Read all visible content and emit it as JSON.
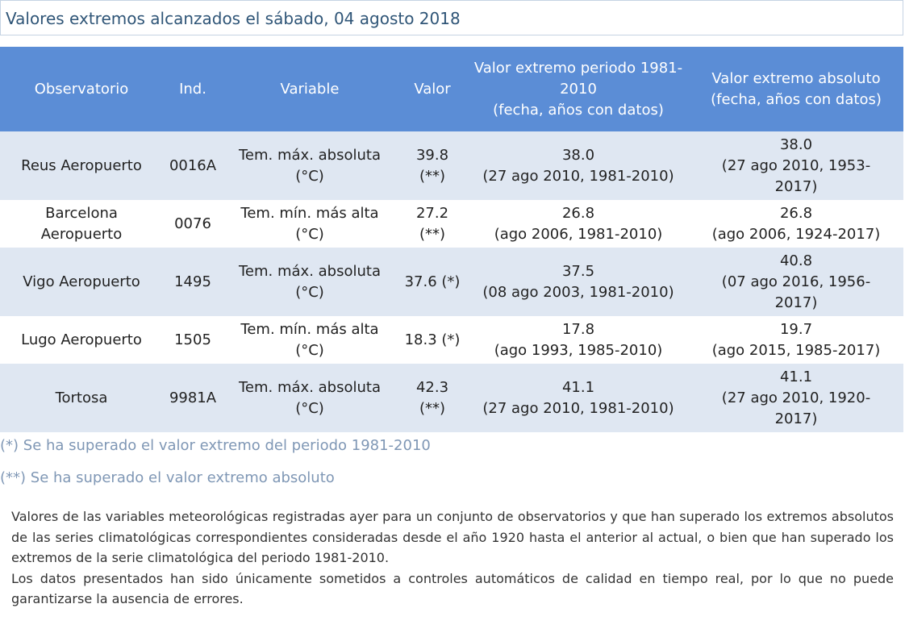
{
  "header": {
    "title": "Valores extremos alcanzados el sábado, 04 agosto 2018"
  },
  "table": {
    "columns": {
      "station": "Observatorio",
      "index": "Ind.",
      "variable": "Variable",
      "value": "Valor",
      "extreme_period": [
        "Valor extremo periodo 1981-",
        "2010",
        "(fecha, años con datos)"
      ],
      "extreme_absolute": [
        "Valor extremo absoluto",
        "(fecha, años con datos)"
      ]
    },
    "rows": [
      {
        "station": [
          "Reus Aeropuerto"
        ],
        "index": "0016A",
        "variable": [
          "Tem. máx. absoluta",
          "(°C)"
        ],
        "value": [
          "39.8",
          "(**)"
        ],
        "extreme_period": [
          "38.0",
          "(27 ago 2010, 1981-2010)"
        ],
        "extreme_absolute": [
          "38.0",
          "(27 ago 2010, 1953-",
          "2017)"
        ]
      },
      {
        "station": [
          "Barcelona",
          "Aeropuerto"
        ],
        "index": "0076",
        "variable": [
          "Tem. mín. más alta",
          "(°C)"
        ],
        "value": [
          "27.2",
          "(**)"
        ],
        "extreme_period": [
          "26.8",
          "(ago 2006, 1981-2010)"
        ],
        "extreme_absolute": [
          "26.8",
          "(ago 2006, 1924-2017)"
        ]
      },
      {
        "station": [
          "Vigo Aeropuerto"
        ],
        "index": "1495",
        "variable": [
          "Tem. máx. absoluta",
          "(°C)"
        ],
        "value": [
          "37.6 (*)"
        ],
        "extreme_period": [
          "37.5",
          "(08 ago 2003, 1981-2010)"
        ],
        "extreme_absolute": [
          "40.8",
          "(07 ago 2016, 1956-",
          "2017)"
        ]
      },
      {
        "station": [
          "Lugo Aeropuerto"
        ],
        "index": "1505",
        "variable": [
          "Tem. mín. más alta",
          "(°C)"
        ],
        "value": [
          "18.3 (*)"
        ],
        "extreme_period": [
          "17.8",
          "(ago 1993, 1985-2010)"
        ],
        "extreme_absolute": [
          "19.7",
          "(ago 2015, 1985-2017)"
        ]
      },
      {
        "station": [
          "Tortosa"
        ],
        "index": "9981A",
        "variable": [
          "Tem. máx. absoluta",
          "(°C)"
        ],
        "value": [
          "42.3",
          "(**)"
        ],
        "extreme_period": [
          "41.1",
          "(27 ago 2010, 1981-2010)"
        ],
        "extreme_absolute": [
          "41.1",
          "(27 ago 2010, 1920-",
          "2017)"
        ]
      }
    ]
  },
  "footnotes": {
    "single": "(*) Se ha superado el valor extremo del periodo 1981-2010",
    "double": "(**) Se ha superado el valor extremo absoluto"
  },
  "description": {
    "paragraph_1": "Valores de las variables meteorológicas registradas ayer para un conjunto de observatorios y que han superado los extremos absolutos de las series climatológicas correspondientes consideradas desde el año 1920 hasta el anterior al actual, o bien que han superado los extremos de la serie climatológica del periodo 1981-2010.",
    "paragraph_2": "Los datos presentados han sido únicamente sometidos a controles automáticos de calidad en tiempo real, por lo que no puede garantizarse la ausencia de errores."
  },
  "colors": {
    "header_bg": "#5b8dd6",
    "row_alt_bg": "#dfe7f2",
    "title_text": "#2f5577",
    "footnote_text": "#7f97b5"
  }
}
